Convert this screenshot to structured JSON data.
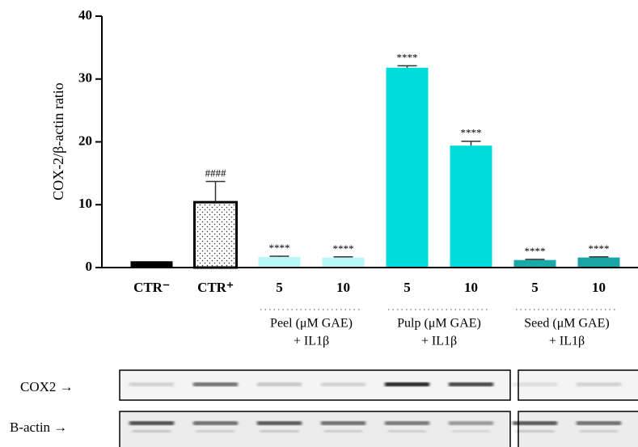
{
  "chart_data": {
    "type": "bar",
    "y_label": "COX-2/β-actin ratio",
    "categories": [
      "CTR⁻",
      "CTR⁺",
      "5",
      "10",
      "5",
      "10",
      "5",
      "10"
    ],
    "values": [
      1.0,
      10.4,
      1.7,
      1.6,
      31.8,
      19.4,
      1.2,
      1.6
    ],
    "errors": [
      null,
      3.3,
      0.1,
      0.1,
      0.3,
      0.7,
      0.1,
      0.1
    ],
    "annotations": [
      null,
      "####",
      "****",
      "****",
      "****",
      "****",
      "****",
      "****"
    ],
    "colors": [
      "#000000",
      "#ffffff",
      "#b8f8f8",
      "#b8f8f8",
      "#00dcdc",
      "#00dcdc",
      "#1aa9a9",
      "#1aa4a4"
    ],
    "patterns": [
      null,
      "dots",
      null,
      null,
      null,
      null,
      null,
      null
    ],
    "groups": [
      {
        "label": "Peel (μM GAE)",
        "sublabel": "+ IL1β"
      },
      {
        "label": "Pulp (μM GAE)",
        "sublabel": "+ IL1β"
      },
      {
        "label": "Seed (μM GAE)",
        "sublabel": "+ IL1β"
      }
    ],
    "ylim": [
      0,
      40
    ],
    "yticks": [
      0,
      10,
      20,
      30,
      40
    ],
    "blot_labels": [
      "COX2 →",
      "B-actin →"
    ]
  }
}
